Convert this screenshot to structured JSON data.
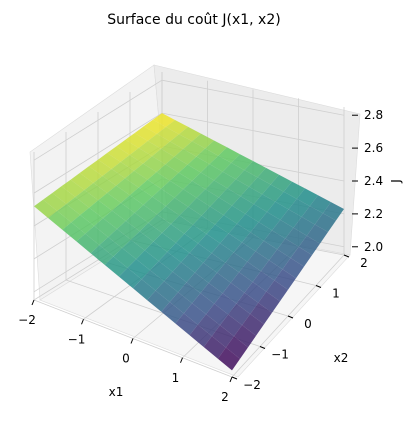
{
  "chart_data": {
    "type": "surface3d",
    "title": "Surface du coût J(x1, x2)",
    "xlabel": "x1",
    "ylabel": "x2",
    "zlabel": "J",
    "xticks": [
      "−2",
      "−1",
      "0",
      "1",
      "2"
    ],
    "yticks": [
      "−2",
      "−1",
      "0",
      "1",
      "2"
    ],
    "zticks": [
      "2.0",
      "2.2",
      "2.4",
      "2.6",
      "2.8"
    ],
    "xlim": [
      -2,
      2
    ],
    "ylim": [
      -2,
      2
    ],
    "zlim": [
      1.95,
      2.85
    ],
    "grid": true,
    "colormap": "viridis",
    "surface": {
      "x1_range": [
        -2,
        2
      ],
      "x2_range": [
        -2,
        2
      ],
      "corners": [
        {
          "x1": -2,
          "x2": -2,
          "z": 2.52
        },
        {
          "x1": -2,
          "x2": 2,
          "z": 2.6
        },
        {
          "x1": 2,
          "x2": -2,
          "z": 1.99
        },
        {
          "x1": 2,
          "x2": 2,
          "z": 2.23
        }
      ]
    }
  }
}
